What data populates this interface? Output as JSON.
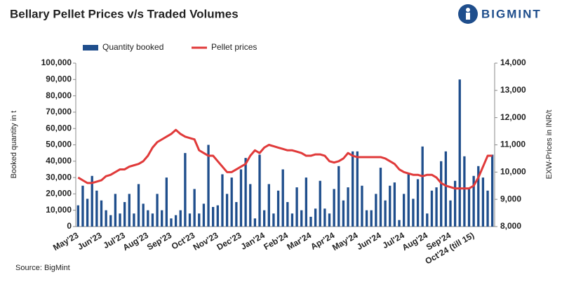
{
  "brand": "BIGMINT",
  "source": "Source: BigMint",
  "chart_data": {
    "type": "bar-line",
    "title": "Bellary Pellet Prices v/s Traded Volumes",
    "y_label": "Booked quantity in t",
    "y2_label": "EXW-Prices in INR/t",
    "categories": [
      "May'23",
      null,
      null,
      null,
      null,
      "Jun'23",
      null,
      null,
      null,
      null,
      "Jul'23",
      null,
      null,
      null,
      null,
      "Aug'23",
      null,
      null,
      null,
      null,
      "Sep'23",
      null,
      null,
      null,
      null,
      "Oct'23",
      null,
      null,
      null,
      null,
      "Nov'23",
      null,
      null,
      null,
      null,
      "Dec'23",
      null,
      null,
      null,
      null,
      "Jan'24",
      null,
      null,
      null,
      null,
      "Feb'24",
      null,
      null,
      null,
      null,
      "Mar'24",
      null,
      null,
      null,
      null,
      "Apr'24",
      null,
      null,
      null,
      null,
      "May'24",
      null,
      null,
      null,
      null,
      "Jun'24",
      null,
      null,
      null,
      null,
      "Jul'24",
      null,
      null,
      null,
      null,
      "Aug'24",
      null,
      null,
      null,
      null,
      "Sep'24",
      null,
      null,
      null,
      null,
      "Oct'24 (till 15)",
      null,
      null,
      null,
      null
    ],
    "series": [
      {
        "name": "Quantity booked",
        "color": "#1f4e8c",
        "kind": "bar",
        "values": [
          13000,
          25000,
          17000,
          31000,
          22000,
          16000,
          10000,
          7000,
          20000,
          8000,
          15000,
          20000,
          8000,
          26000,
          14000,
          10000,
          8000,
          20000,
          10000,
          30000,
          5000,
          7000,
          10000,
          45000,
          8000,
          23000,
          8000,
          14000,
          50000,
          12000,
          13000,
          32000,
          20000,
          30000,
          15000,
          35000,
          42000,
          26000,
          5000,
          44000,
          10000,
          26000,
          8000,
          22000,
          35000,
          15000,
          8000,
          24000,
          10000,
          30000,
          6000,
          11000,
          28000,
          11000,
          8000,
          23000,
          37000,
          16000,
          24000,
          46000,
          46000,
          25000,
          10000,
          10000,
          20000,
          36000,
          16000,
          25000,
          27000,
          4000,
          20000,
          32000,
          17000,
          29000,
          49000,
          8000,
          22000,
          24000,
          40000,
          46000,
          16000,
          28000,
          90000,
          43000,
          23000,
          31000,
          37000,
          30000,
          22000,
          44000
        ]
      },
      {
        "name": "Pellet prices",
        "color": "#e03a3a",
        "kind": "line",
        "axis": "y2",
        "values": [
          9800,
          9700,
          9600,
          9600,
          9650,
          9700,
          9850,
          9900,
          10000,
          10100,
          10100,
          10200,
          10250,
          10300,
          10400,
          10600,
          10900,
          11100,
          11200,
          11300,
          11400,
          11550,
          11400,
          11300,
          11250,
          11200,
          10800,
          10700,
          10600,
          10600,
          10400,
          10200,
          10000,
          10000,
          10100,
          10200,
          10300,
          10600,
          10800,
          10700,
          10900,
          11000,
          10950,
          10900,
          10850,
          10800,
          10800,
          10750,
          10700,
          10600,
          10600,
          10650,
          10650,
          10600,
          10400,
          10350,
          10400,
          10500,
          10700,
          10600,
          10550,
          10550,
          10550,
          10550,
          10550,
          10550,
          10500,
          10400,
          10300,
          10100,
          10000,
          9950,
          9900,
          9900,
          9850,
          9900,
          9900,
          9800,
          9600,
          9500,
          9450,
          9400,
          9400,
          9400,
          9400,
          9500,
          9800,
          10200,
          10600,
          10600
        ]
      }
    ],
    "ylim": [
      0,
      100000
    ],
    "yticks": [
      0,
      {
        "value": 10000,
        "label": "10,000"
      },
      {
        "value": 20000,
        "label": "20,000"
      },
      {
        "value": 30000,
        "label": "30,000"
      },
      {
        "value": 40000,
        "label": "40,000"
      },
      {
        "value": 50000,
        "label": "50,000"
      },
      {
        "value": 60000,
        "label": "60,000"
      },
      {
        "value": 70000,
        "label": "70,000"
      },
      {
        "value": 80000,
        "label": "80,000"
      },
      {
        "value": 90000,
        "label": "90,000"
      },
      {
        "value": 100000,
        "label": "100,000"
      }
    ],
    "y2lim": [
      8000,
      14000
    ],
    "y2ticks": [
      {
        "value": 8000,
        "label": "8,000"
      },
      {
        "value": 9000,
        "label": "9,000"
      },
      {
        "value": 10000,
        "label": "10,000"
      },
      {
        "value": 11000,
        "label": "11,000"
      },
      {
        "value": 12000,
        "label": "12,000"
      },
      {
        "value": 13000,
        "label": "13,000"
      },
      {
        "value": 14000,
        "label": "14,000"
      }
    ],
    "legend": "top"
  }
}
